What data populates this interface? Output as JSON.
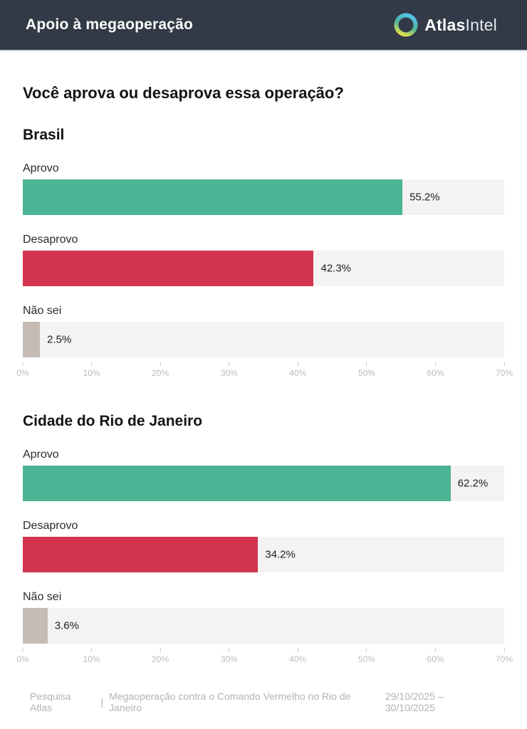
{
  "header": {
    "title": "Apoio à megaoperação",
    "brand": {
      "bold": "Atlas",
      "light": "Intel"
    }
  },
  "question": "Você aprova ou desaprova essa operação?",
  "colors": {
    "header_bg": "#323a47",
    "approve_green": "#4bb494",
    "disapprove_red": "#d3344f",
    "dontknow_tan": "#c6bcb5",
    "track_gray": "#f4f3f1",
    "axis_text": "#b9bcc0",
    "logo_cyan": "#55c3e9",
    "logo_green": "#4db39b",
    "logo_yellow": "#dde04e"
  },
  "chart_data": [
    {
      "type": "bar",
      "orientation": "horizontal",
      "title": "Brasil",
      "categories": [
        "Aprovo",
        "Desaprovo",
        "Não sei"
      ],
      "values": [
        55.2,
        42.3,
        2.5
      ],
      "value_labels": [
        "55.2%",
        "42.3%",
        "2.5%"
      ],
      "bar_colors": [
        "#4bb494",
        "#d3344f",
        "#c6bcb5"
      ],
      "xlim": [
        0,
        70
      ],
      "tick_values": [
        0,
        10,
        20,
        30,
        40,
        50,
        60,
        70
      ],
      "tick_labels": [
        "0%",
        "10%",
        "20%",
        "30%",
        "40%",
        "50%",
        "60%",
        "70%"
      ]
    },
    {
      "type": "bar",
      "orientation": "horizontal",
      "title": "Cidade do Rio de Janeiro",
      "categories": [
        "Aprovo",
        "Desaprovo",
        "Não sei"
      ],
      "values": [
        62.2,
        34.2,
        3.6
      ],
      "value_labels": [
        "62.2%",
        "34.2%",
        "3.6%"
      ],
      "bar_colors": [
        "#4bb494",
        "#d3344f",
        "#c6bcb5"
      ],
      "xlim": [
        0,
        70
      ],
      "tick_values": [
        0,
        10,
        20,
        30,
        40,
        50,
        60,
        70
      ],
      "tick_labels": [
        "0%",
        "10%",
        "20%",
        "30%",
        "40%",
        "50%",
        "60%",
        "70%"
      ]
    }
  ],
  "footer": {
    "source": "Pesquisa Atlas",
    "separator": "|",
    "subtitle": "Megaoperação contra o Comando Vermelho no Rio de Janeiro",
    "date_range": "29/10/2025 – 30/10/2025"
  }
}
